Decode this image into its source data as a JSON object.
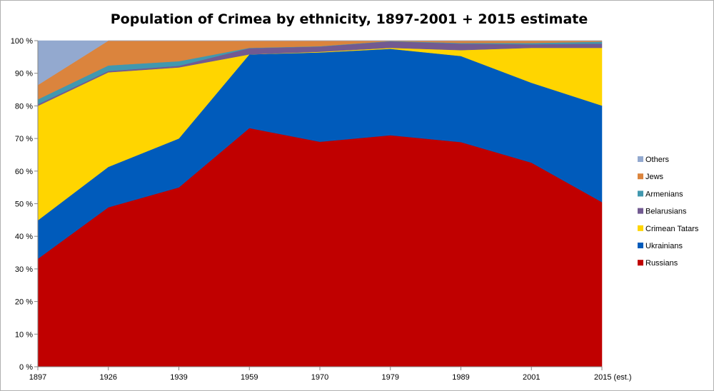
{
  "chart_data": {
    "type": "area",
    "stacked": true,
    "normalized_percent": true,
    "title": "Population of Crimea by ethnicity, 1897-2001 + 2015 estimate",
    "xlabel": "",
    "ylabel": "",
    "categories": [
      "1897",
      "1926",
      "1939",
      "1959",
      "1970",
      "1979",
      "1989",
      "2001",
      "2015 (est.)"
    ],
    "ylim": [
      0,
      100
    ],
    "yticks": [
      "0 %",
      "10 %",
      "20 %",
      "30 %",
      "40 %",
      "50 %",
      "60 %",
      "70 %",
      "80 %",
      "90 %",
      "100 %"
    ],
    "grid": false,
    "legend_position": "right",
    "series": [
      {
        "name": "Russians",
        "color": "#C00000",
        "values": [
          33.1,
          48.9,
          55.0,
          73.2,
          69.0,
          71.0,
          68.9,
          62.6,
          50.5
        ]
      },
      {
        "name": "Ukrainians",
        "color": "#005BBB",
        "values": [
          11.8,
          12.4,
          15.0,
          22.6,
          27.4,
          26.5,
          26.4,
          24.5,
          29.6
        ]
      },
      {
        "name": "Crimean Tatars",
        "color": "#FFD500",
        "values": [
          35.1,
          29.0,
          21.8,
          0.0,
          0.2,
          0.3,
          1.8,
          10.7,
          17.7
        ]
      },
      {
        "name": "Belarusians",
        "color": "#725A91",
        "values": [
          0.5,
          0.4,
          0.5,
          1.9,
          1.6,
          2.0,
          2.0,
          1.1,
          1.3
        ]
      },
      {
        "name": "Armenians",
        "color": "#4198AF",
        "values": [
          1.5,
          1.7,
          1.4,
          0.1,
          0.1,
          0.1,
          0.2,
          0.4,
          0.6
        ]
      },
      {
        "name": "Jews",
        "color": "#DB843D",
        "values": [
          4.4,
          7.6,
          6.3,
          2.2,
          1.7,
          0.1,
          0.7,
          0.7,
          0.3
        ]
      },
      {
        "name": "Others",
        "color": "#93A9CF",
        "values": [
          13.6,
          0.0,
          0.0,
          0.0,
          0.0,
          0.0,
          0.0,
          0.0,
          0.0
        ]
      }
    ]
  }
}
